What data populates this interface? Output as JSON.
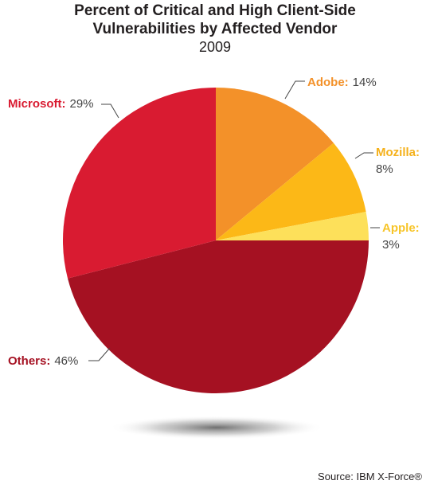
{
  "chart_data": {
    "type": "pie",
    "title_line1": "Percent of Critical and High Client-Side",
    "title_line2": "Vulnerabilities by Affected Vendor",
    "subtitle": "2009",
    "slices": [
      {
        "name": "Adobe:",
        "pct_label": "14%",
        "value": 14,
        "color": "#f39129",
        "label_color": "#f39129"
      },
      {
        "name": "Mozilla:",
        "pct_label": "8%",
        "value": 8,
        "color": "#fcb817",
        "label_color": "#f5b11b"
      },
      {
        "name": "Apple:",
        "pct_label": "3%",
        "value": 3,
        "color": "#fde05a",
        "label_color": "#f7c52a"
      },
      {
        "name": "Others:",
        "pct_label": "46%",
        "value": 46,
        "color": "#a51122",
        "label_color": "#a51122"
      },
      {
        "name": "Microsoft:",
        "pct_label": "29%",
        "value": 29,
        "color": "#d91b31",
        "label_color": "#d91b31"
      }
    ],
    "source": "Source: IBM X-Force®"
  }
}
